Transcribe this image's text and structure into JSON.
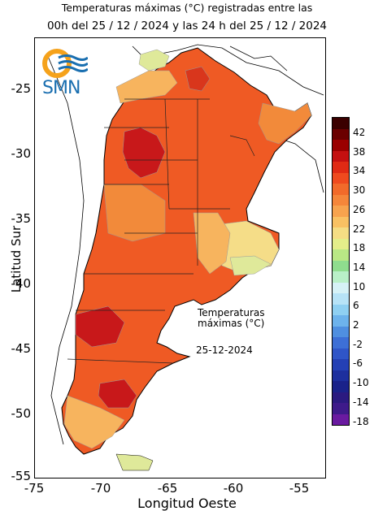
{
  "title_line1": "Temperaturas máximas (°C) registradas entre las",
  "title_line2": "00h del 25 / 12 / 2024 y las 24 h del 25 / 12 / 2024",
  "logo_text": "SMN",
  "y_axis_label": "Latitud Sur",
  "x_axis_label": "Longitud Oeste",
  "y_ticks": [
    "-25",
    "-30",
    "-35",
    "-40",
    "-45",
    "-50",
    "-55"
  ],
  "x_ticks": [
    "-75",
    "-70",
    "-65",
    "-60",
    "-55"
  ],
  "annotation_title": "Temperaturas máximas (°C)",
  "annotation_date": "25-12-2024",
  "colorbar": {
    "labels": [
      "42",
      "38",
      "34",
      "30",
      "26",
      "22",
      "18",
      "14",
      "10",
      "6",
      "2",
      "-2",
      "-6",
      "-10",
      "-14",
      "-18"
    ],
    "colors": [
      "#3a0000",
      "#6b0000",
      "#9a0000",
      "#c41010",
      "#e02a14",
      "#ef4a1e",
      "#f26a2a",
      "#f5863a",
      "#f7a34e",
      "#f9c163",
      "#f5dd84",
      "#e4ee8a",
      "#b9e885",
      "#8fdd8e",
      "#b9f0c8",
      "#d6f2f7",
      "#b7e3f7",
      "#8fd0f2",
      "#6db3ec",
      "#4f8fe0",
      "#3d6fd6",
      "#2f55c8",
      "#2440b5",
      "#1d2f9e",
      "#1a228a",
      "#2b1a80",
      "#3e1a8a",
      "#6a1aa0"
    ]
  },
  "map_regions": {
    "ocean": "#ffffff",
    "argentina_base": "#ef5a24",
    "hot_core": "#c8181a",
    "warm": "#f28a3a",
    "mild": "#f7b45e",
    "cool": "#f5dd88",
    "cold_green": "#dfe99a"
  }
}
